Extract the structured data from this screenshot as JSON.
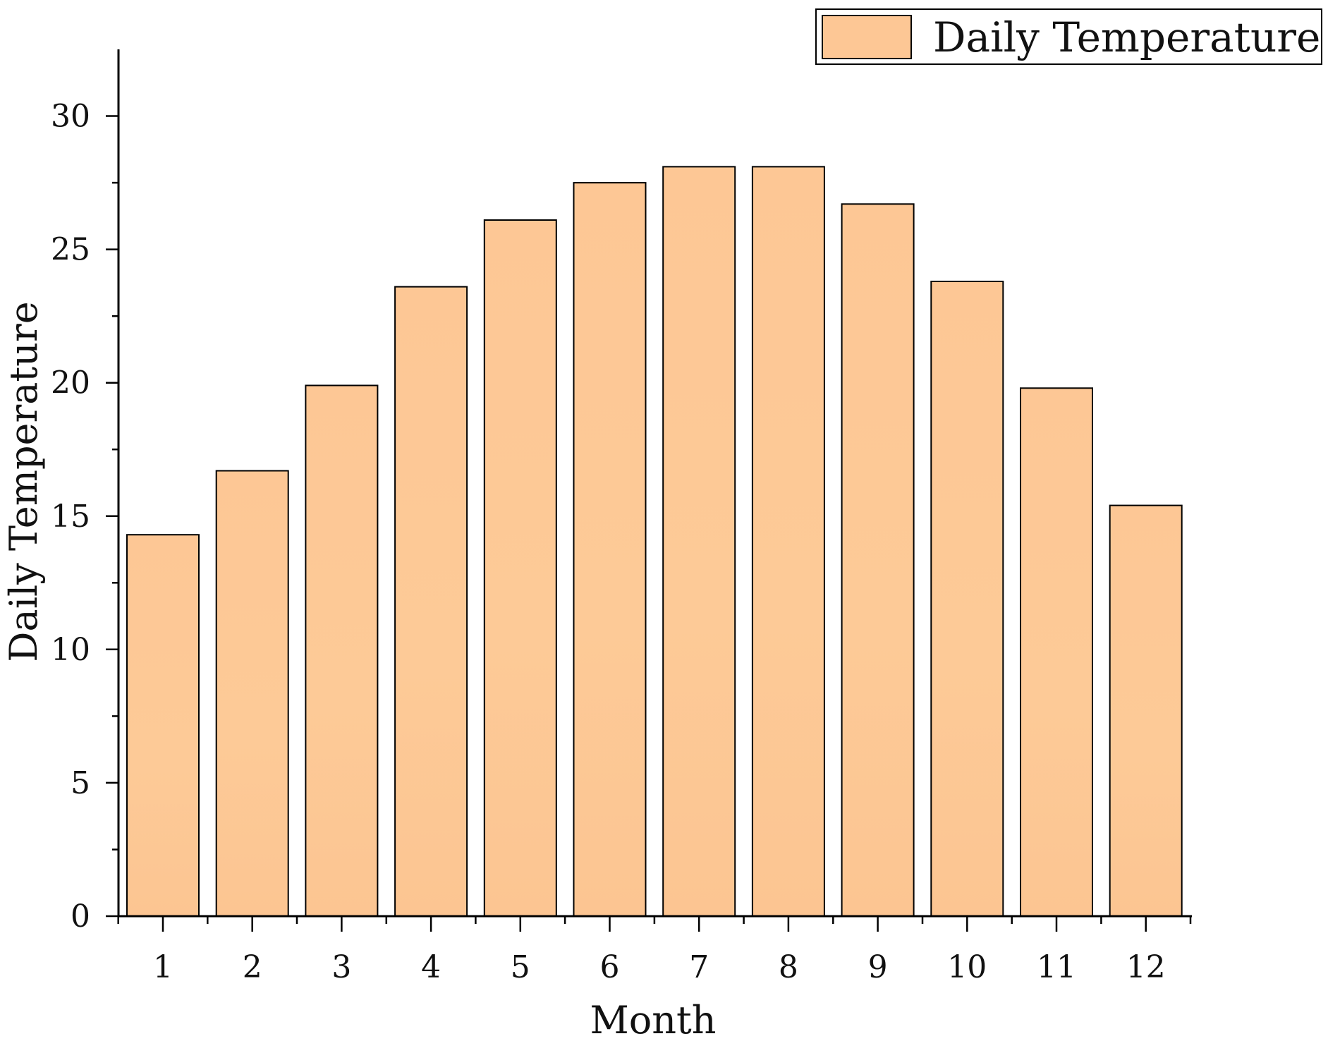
{
  "chart_data": {
    "type": "bar",
    "categories": [
      "1",
      "2",
      "3",
      "4",
      "5",
      "6",
      "7",
      "8",
      "9",
      "10",
      "11",
      "12"
    ],
    "series": [
      {
        "name": "Daily Temperature",
        "values": [
          14.3,
          16.7,
          19.9,
          23.6,
          26.1,
          27.5,
          28.1,
          28.1,
          26.7,
          23.8,
          19.8,
          15.4
        ]
      }
    ],
    "title": "",
    "xlabel": "Month",
    "ylabel": "Daily Temperature",
    "ylim": [
      0,
      32.5
    ],
    "y_ticks": [
      "0",
      "5",
      "10",
      "15",
      "20",
      "25",
      "30"
    ],
    "grid": false,
    "legend_position": "top-right",
    "colors": {
      "bar_fill": "#fdc795",
      "bar_stroke": "#000000"
    }
  }
}
